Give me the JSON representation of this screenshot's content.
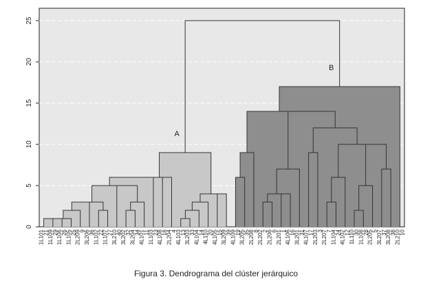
{
  "chart_data": {
    "type": "dendrogram",
    "caption": "Figura 3. Dendrograma del clúster jerárquico",
    "ylim": [
      0,
      26.5
    ],
    "yticks": [
      0,
      5,
      10,
      15,
      20,
      25
    ],
    "grid": true,
    "leaves": [
      {
        "code": "1L101",
        "id": "21"
      },
      {
        "code": "1L109",
        "id": "29"
      },
      {
        "code": "1L106",
        "id": "26"
      },
      {
        "code": "1L105",
        "id": "25"
      },
      {
        "code": "2L209",
        "id": "9"
      },
      {
        "code": "3L206",
        "id": "36"
      },
      {
        "code": "1L102",
        "id": "22"
      },
      {
        "code": "1L107",
        "id": "27"
      },
      {
        "code": "3L210",
        "id": "40"
      },
      {
        "code": "3L202",
        "id": "32"
      },
      {
        "code": "3L204",
        "id": "34"
      },
      {
        "code": "4L101",
        "id": "11"
      },
      {
        "code": "1L103",
        "id": "23"
      },
      {
        "code": "4L108",
        "id": "18"
      },
      {
        "code": "2L204",
        "id": "4"
      },
      {
        "code": "4L103",
        "id": "13"
      },
      {
        "code": "3L203",
        "id": "33"
      },
      {
        "code": "4L104",
        "id": "14"
      },
      {
        "code": "4L110",
        "id": "20"
      },
      {
        "code": "4L105",
        "id": "15"
      },
      {
        "code": "3L209",
        "id": "39"
      },
      {
        "code": "4L109",
        "id": "19"
      },
      {
        "code": "3L205",
        "id": "35"
      },
      {
        "code": "2L208",
        "id": "8"
      },
      {
        "code": "2L202",
        "id": "2"
      },
      {
        "code": "2L206",
        "id": "6"
      },
      {
        "code": "2L201",
        "id": "1"
      },
      {
        "code": "4L106",
        "id": "16"
      },
      {
        "code": "3L201",
        "id": "31"
      },
      {
        "code": "4L107",
        "id": "17"
      },
      {
        "code": "2L203",
        "id": "3"
      },
      {
        "code": "2L207",
        "id": "7"
      },
      {
        "code": "1L104",
        "id": "24"
      },
      {
        "code": "4L102",
        "id": "12"
      },
      {
        "code": "1L110",
        "id": "30"
      },
      {
        "code": "1L108",
        "id": "28"
      },
      {
        "code": "2L205",
        "id": "5"
      },
      {
        "code": "3L207",
        "id": "37"
      },
      {
        "code": "3L208",
        "id": "38"
      },
      {
        "code": "2L210",
        "id": "10"
      }
    ],
    "merges": [
      {
        "left": 0,
        "right": 1,
        "height": 1
      },
      {
        "left": 40,
        "right": 2,
        "height": 1
      },
      {
        "left": 41,
        "right": 3,
        "height": 1
      },
      {
        "left": 42,
        "right": 4,
        "height": 2
      },
      {
        "left": 6,
        "right": 7,
        "height": 2
      },
      {
        "left": 43,
        "right": 5,
        "height": 3
      },
      {
        "left": 45,
        "right": 44,
        "height": 3
      },
      {
        "left": 9,
        "right": 10,
        "height": 2
      },
      {
        "left": 47,
        "right": 11,
        "height": 3
      },
      {
        "left": 8,
        "right": 48,
        "height": 5
      },
      {
        "left": 46,
        "right": 49,
        "height": 5
      },
      {
        "left": 50,
        "right": 12,
        "height": 6
      },
      {
        "left": 51,
        "right": 13,
        "height": 6
      },
      {
        "left": 15,
        "right": 16,
        "height": 1
      },
      {
        "left": 53,
        "right": 17,
        "height": 2
      },
      {
        "left": 54,
        "right": 18,
        "height": 3
      },
      {
        "left": 19,
        "right": 20,
        "height": 4
      },
      {
        "left": 55,
        "right": 56,
        "height": 4
      },
      {
        "left": 52,
        "right": 14,
        "height": 6
      },
      {
        "left": 58,
        "right": 57,
        "height": 9
      },
      {
        "left": 21,
        "right": 22,
        "height": 6
      },
      {
        "left": 60,
        "right": 23,
        "height": 9
      },
      {
        "left": 24,
        "right": 25,
        "height": 3
      },
      {
        "left": 26,
        "right": 27,
        "height": 4
      },
      {
        "left": 62,
        "right": 63,
        "height": 4
      },
      {
        "left": 64,
        "right": 28,
        "height": 7
      },
      {
        "left": 29,
        "right": 30,
        "height": 9
      },
      {
        "left": 31,
        "right": 32,
        "height": 3
      },
      {
        "left": 67,
        "right": 33,
        "height": 6
      },
      {
        "left": 34,
        "right": 35,
        "height": 2
      },
      {
        "left": 69,
        "right": 36,
        "height": 5
      },
      {
        "left": 37,
        "right": 38,
        "height": 7
      },
      {
        "left": 70,
        "right": 71,
        "height": 10
      },
      {
        "left": 68,
        "right": 72,
        "height": 10
      },
      {
        "left": 66,
        "right": 73,
        "height": 12
      },
      {
        "left": 65,
        "right": 74,
        "height": 14
      },
      {
        "left": 61,
        "right": 75,
        "height": 14
      },
      {
        "left": 76,
        "right": 39,
        "height": 17
      },
      {
        "left": 59,
        "right": 77,
        "height": 25
      }
    ],
    "clusters": [
      {
        "name": "A",
        "node": 59,
        "color": "#c8c8c8"
      },
      {
        "name": "B",
        "node": 77,
        "color": "#8e8e8e"
      }
    ],
    "background": "#e8e8e8",
    "line_color": "#333333"
  }
}
